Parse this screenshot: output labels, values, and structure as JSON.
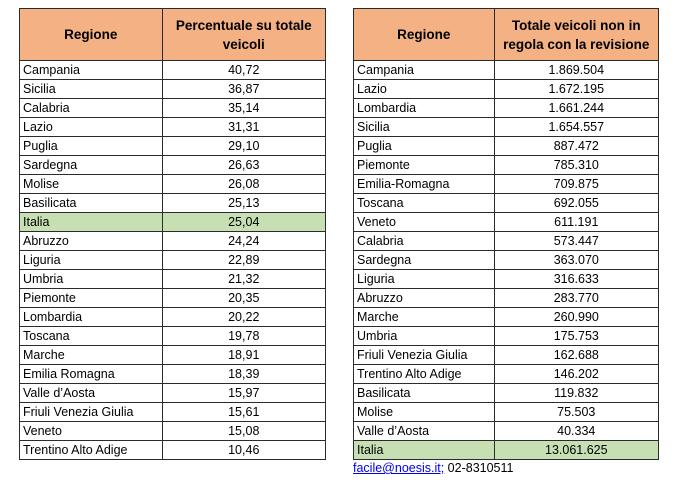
{
  "table1": {
    "headers": [
      "Regione",
      "Percentuale su totale veicoli"
    ],
    "rows": [
      {
        "name": "Campania",
        "value": "40,72"
      },
      {
        "name": "Sicilia",
        "value": "36,87"
      },
      {
        "name": "Calabria",
        "value": "35,14"
      },
      {
        "name": "Lazio",
        "value": "31,31"
      },
      {
        "name": "Puglia",
        "value": "29,10"
      },
      {
        "name": "Sardegna",
        "value": "26,63"
      },
      {
        "name": "Molise",
        "value": "26,08"
      },
      {
        "name": "Basilicata",
        "value": "25,13"
      },
      {
        "name": "Italia",
        "value": "25,04",
        "highlight": true
      },
      {
        "name": "Abruzzo",
        "value": "24,24"
      },
      {
        "name": "Liguria",
        "value": "22,89"
      },
      {
        "name": "Umbria",
        "value": "21,32"
      },
      {
        "name": "Piemonte",
        "value": "20,35"
      },
      {
        "name": "Lombardia",
        "value": "20,22"
      },
      {
        "name": "Toscana",
        "value": "19,78"
      },
      {
        "name": "Marche",
        "value": "18,91"
      },
      {
        "name": "Emilia Romagna",
        "value": "18,39"
      },
      {
        "name": "Valle d’Aosta",
        "value": "15,97"
      },
      {
        "name": "Friuli Venezia Giulia",
        "value": "15,61"
      },
      {
        "name": "Veneto",
        "value": "15,08"
      },
      {
        "name": "Trentino Alto Adige",
        "value": "10,46"
      }
    ]
  },
  "table2": {
    "headers": [
      "Regione",
      "Totale veicoli non in regola con la revisione"
    ],
    "rows": [
      {
        "name": "Campania",
        "value": "1.869.504"
      },
      {
        "name": "Lazio",
        "value": "1.672.195"
      },
      {
        "name": "Lombardia",
        "value": "1.661.244"
      },
      {
        "name": "Sicilia",
        "value": "1.654.557"
      },
      {
        "name": "Puglia",
        "value": "887.472"
      },
      {
        "name": "Piemonte",
        "value": "785.310"
      },
      {
        "name": "Emilia-Romagna",
        "value": "709.875"
      },
      {
        "name": "Toscana",
        "value": "692.055"
      },
      {
        "name": "Veneto",
        "value": "611.191"
      },
      {
        "name": "Calabria",
        "value": "573.447"
      },
      {
        "name": "Sardegna",
        "value": "363.070"
      },
      {
        "name": "Liguria",
        "value": "316.633"
      },
      {
        "name": "Abruzzo",
        "value": "283.770"
      },
      {
        "name": "Marche",
        "value": "260.990"
      },
      {
        "name": "Umbria",
        "value": "175.753"
      },
      {
        "name": "Friuli Venezia Giulia",
        "value": "162.688"
      },
      {
        "name": "Trentino Alto Adige",
        "value": "146.202"
      },
      {
        "name": "Basilicata",
        "value": "119.832"
      },
      {
        "name": "Molise",
        "value": "75.503"
      },
      {
        "name": "Valle d’Aosta",
        "value": "40.334"
      },
      {
        "name": "Italia",
        "value": "13.061.625",
        "highlight": true
      }
    ]
  },
  "footer": {
    "email": "facile@noesis.it;",
    "phone": " 02-8310511"
  },
  "colors": {
    "header_bg": "#f4b183",
    "highlight_bg": "#c6e0b4"
  }
}
